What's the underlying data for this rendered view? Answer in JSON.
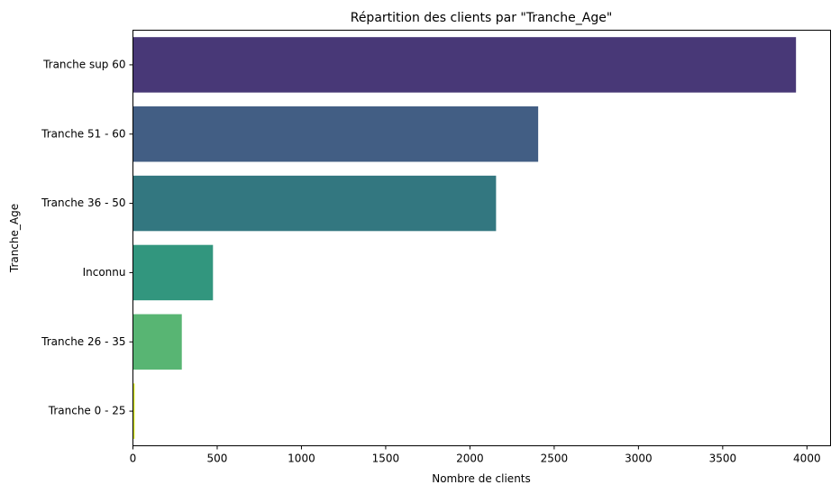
{
  "chart_data": {
    "type": "bar",
    "orientation": "horizontal",
    "title": "Répartition des clients par \"Tranche_Age\"",
    "xlabel": "Nombre de clients",
    "ylabel": "Tranche_Age",
    "xlim": [
      0,
      4140
    ],
    "xticks": [
      0,
      500,
      1000,
      1500,
      2000,
      2500,
      3000,
      3500,
      4000
    ],
    "grid": false,
    "legend": "none",
    "categories": [
      "Tranche sup 60",
      "Tranche 51 - 60",
      "Tranche 36 - 50",
      "Inconnu",
      "Tranche 26 - 35",
      "Tranche 0 - 25"
    ],
    "values": [
      3935,
      2405,
      2155,
      475,
      290,
      10
    ],
    "colors": [
      "#483877",
      "#425e84",
      "#337780",
      "#32967e",
      "#58b573",
      "#d2e21b"
    ]
  }
}
